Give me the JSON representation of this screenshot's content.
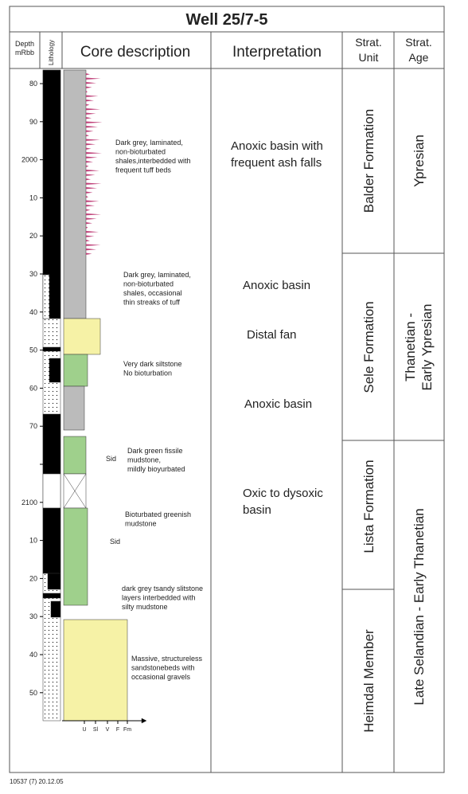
{
  "title": "Well 25/7-5",
  "headers": {
    "depth": [
      "Depth",
      "mRbb"
    ],
    "lithology": "Lithology",
    "core_description": "Core description",
    "interpretation": "Interpretation",
    "strat_unit": [
      "Strat.",
      "Unit"
    ],
    "strat_age": [
      "Strat.",
      "Age"
    ]
  },
  "depth_ticks": [
    "80",
    "90",
    "2000",
    "10",
    "20",
    "30",
    "40",
    "50",
    "60",
    "70",
    null,
    "2100",
    "10",
    "20",
    "30",
    "40",
    "50"
  ],
  "grain_scale": [
    "U",
    "Sl",
    "V",
    "F",
    "Fm"
  ],
  "core_descriptions": [
    {
      "lines": [
        "Dark grey, laminated,",
        "non-bioturbated",
        "shales,interbedded with",
        "frequent tuff beds"
      ]
    },
    {
      "lines": [
        "Dark grey, laminated,",
        "non-bioturbated",
        "shales, occasional",
        "thin streaks of tuff"
      ]
    },
    {
      "lines": [
        "Very dark siltstone",
        "No bioturbation"
      ]
    },
    {
      "lines": [
        "Dark green fissile",
        "mudstone,",
        "mildly bioyurbated"
      ]
    },
    {
      "lines": [
        "Bioturbated greenish",
        "mudstone"
      ]
    },
    {
      "lines": [
        "dark grey tsandy slitstone",
        "layers interbedded with",
        "silty mudstone"
      ]
    },
    {
      "lines": [
        "Massive, structureless",
        "sandstonebeds with",
        "occasional gravels"
      ]
    }
  ],
  "sid_labels": [
    "Sid",
    "Sid"
  ],
  "interpretations": [
    {
      "lines": [
        "Anoxic basin with",
        "frequent ash falls"
      ]
    },
    {
      "lines": [
        "Anoxic basin"
      ]
    },
    {
      "lines": [
        "Distal fan"
      ]
    },
    {
      "lines": [
        "Anoxic basin"
      ]
    },
    {
      "lines": [
        "Oxic to dysoxic",
        "basin"
      ]
    }
  ],
  "strat_units": [
    "Balder Formation",
    "Sele Formation",
    "Lista Formation",
    "Heimdal Member"
  ],
  "strat_ages": [
    "Ypresian",
    "Thanetian -\nEarly Ypresian",
    "Late Selandian - Early Thanetian"
  ],
  "footer": "10537 (7) 20.12.05"
}
